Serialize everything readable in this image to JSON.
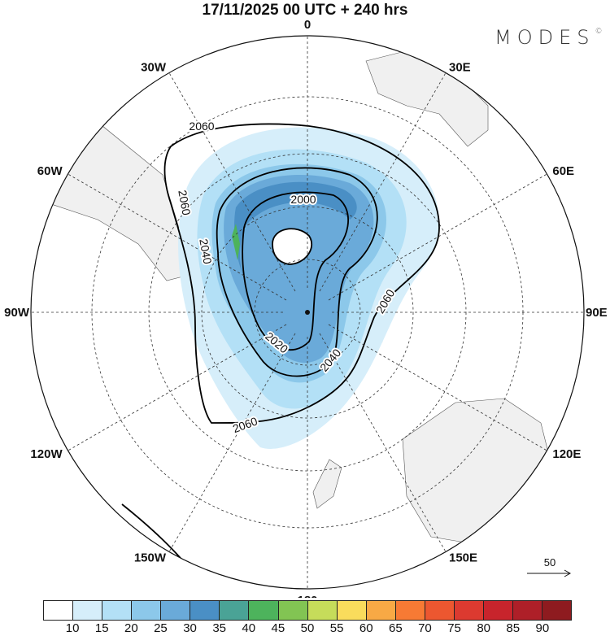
{
  "title": "17/11/2025  00 UTC  + 240 hrs",
  "logo": {
    "text": "MODES",
    "mark": "©"
  },
  "map": {
    "projection": "south polar stereographic",
    "longitude_labels": [
      "0",
      "30E",
      "60E",
      "90E",
      "120E",
      "150E",
      "180",
      "150W",
      "120W",
      "90W",
      "60W",
      "30W"
    ],
    "contour_labels": [
      "2060",
      "2060",
      "2000",
      "2040",
      "2060",
      "2020",
      "2040",
      "2060"
    ],
    "field_colors": {
      "land": "#f0f0f0",
      "ocean": "#ffffff",
      "contour": "#000000"
    }
  },
  "vector_reference": {
    "label": "50"
  },
  "colorbar": {
    "colors": [
      "#ffffff",
      "#d6eefa",
      "#b3e0f6",
      "#8cc8ea",
      "#6aaad9",
      "#4a8fc5",
      "#4aa396",
      "#4db35c",
      "#82c453",
      "#c6dc5a",
      "#f9dc5c",
      "#f8a945",
      "#f77a34",
      "#ec5730",
      "#dc3a30",
      "#c8242c",
      "#ae1f28",
      "#8e1b1f"
    ],
    "labels": [
      "10",
      "15",
      "20",
      "25",
      "30",
      "35",
      "40",
      "45",
      "50",
      "55",
      "60",
      "65",
      "70",
      "75",
      "80",
      "85",
      "90"
    ]
  }
}
